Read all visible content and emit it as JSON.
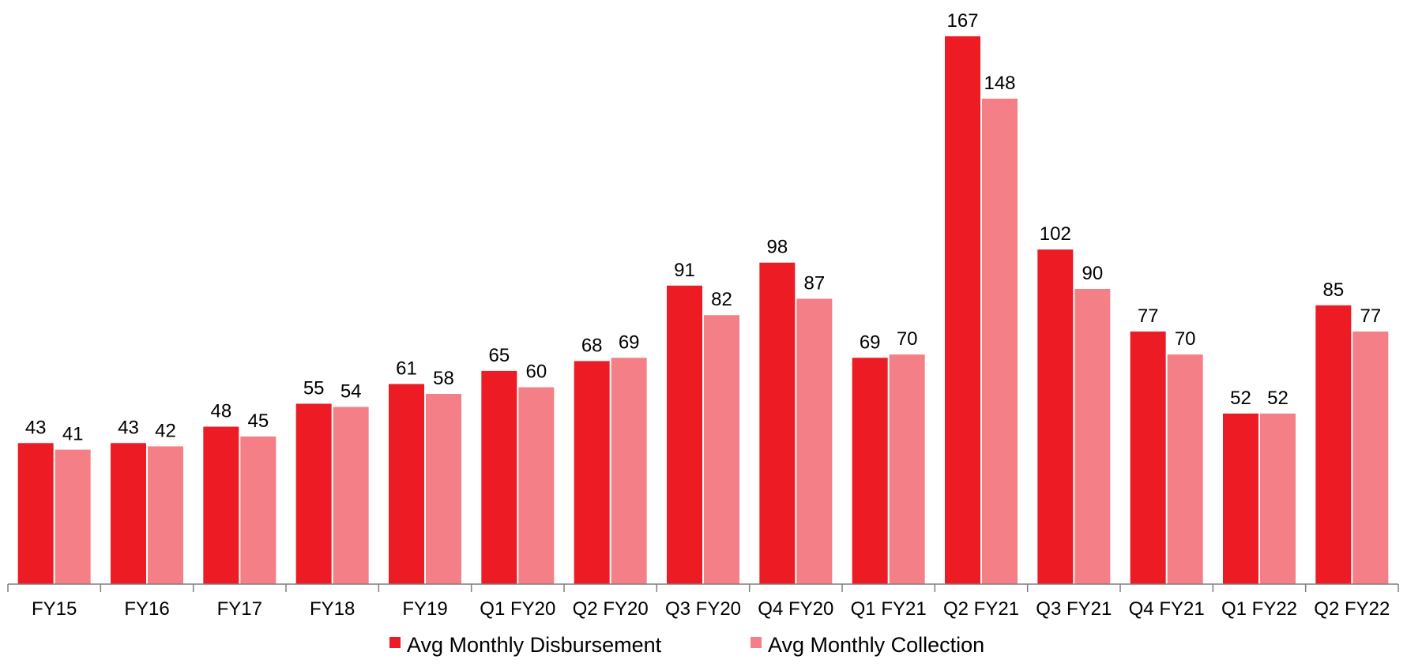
{
  "chart_data": {
    "type": "bar",
    "title": "",
    "xlabel": "",
    "ylabel": "",
    "categories": [
      "FY15",
      "FY16",
      "FY17",
      "FY18",
      "FY19",
      "Q1 FY20",
      "Q2 FY20",
      "Q3 FY20",
      "Q4 FY20",
      "Q1 FY21",
      "Q2 FY21",
      "Q3 FY21",
      "Q4 FY21",
      "Q1 FY22",
      "Q2 FY22"
    ],
    "series": [
      {
        "name": "Avg Monthly Disbursement",
        "color": "#ED1C24",
        "values": [
          43,
          43,
          48,
          55,
          61,
          65,
          68,
          91,
          98,
          69,
          167,
          102,
          77,
          52,
          85
        ]
      },
      {
        "name": "Avg Monthly Collection",
        "color": "#F47F86",
        "values": [
          41,
          42,
          45,
          54,
          58,
          60,
          69,
          82,
          87,
          70,
          148,
          90,
          70,
          52,
          77
        ]
      }
    ],
    "ylim": [
      0,
      167
    ],
    "grid": false,
    "data_labels": true,
    "legend_position": "bottom-center"
  }
}
